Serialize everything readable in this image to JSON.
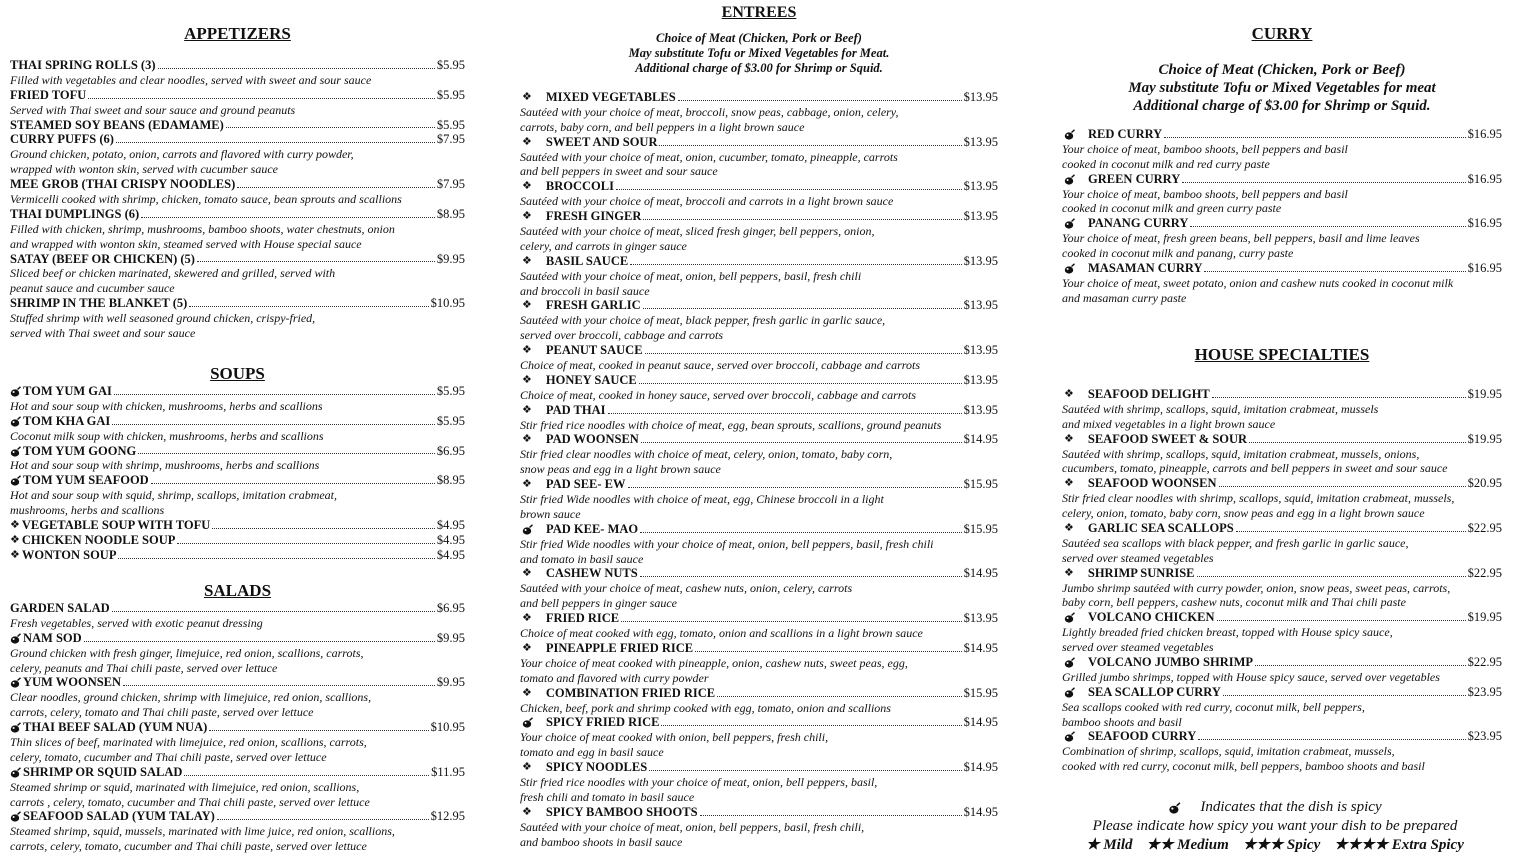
{
  "appetizers": {
    "title": "APPETIZERS",
    "items": [
      {
        "name": "THAI SPRING ROLLS (3)",
        "price": "$5.95",
        "desc": [
          "Filled with vegetables and clear noodles, served with sweet and sour sauce"
        ]
      },
      {
        "name": "FRIED TOFU",
        "price": "$5.95",
        "desc": [
          "Served with Thai sweet and sour sauce and ground peanuts"
        ]
      },
      {
        "name": "STEAMED SOY BEANS (EDAMAME)",
        "price": "$5.95",
        "desc": []
      },
      {
        "name": "CURRY PUFFS (6)",
        "price": "$7.95",
        "desc": [
          "Ground chicken, potato, onion, carrots and flavored with curry powder,",
          "wrapped with wonton skin, served with cucumber sauce"
        ]
      },
      {
        "name": "MEE GROB (THAI CRISPY NOODLES)",
        "price": "$7.95",
        "desc": [
          "Vermicelli cooked with shrimp, chicken, tomato sauce, bean sprouts and scallions"
        ]
      },
      {
        "name": "THAI DUMPLINGS (6)",
        "price": "$8.95",
        "desc": [
          "Filled with chicken, shrimp, mushrooms, bamboo shoots, water chestnuts, onion",
          "and wrapped with wonton skin, steamed served with House special sauce"
        ]
      },
      {
        "name": "SATAY (BEEF OR CHICKEN) (5)",
        "price": "$9.95",
        "desc": [
          "Sliced beef or chicken marinated, skewered and grilled, served with",
          "peanut sauce and cucumber sauce"
        ]
      },
      {
        "name": "SHRIMP IN THE BLANKET (5)",
        "price": "$10.95",
        "desc": [
          "Stuffed shrimp with well seasoned ground chicken, crispy-fried,",
          "served with Thai sweet and sour sauce"
        ]
      }
    ]
  },
  "soups": {
    "title": "SOUPS",
    "items": [
      {
        "spicy": true,
        "name": "TOM  YUM  GAI",
        "price": "$5.95",
        "desc": [
          "Hot and sour soup with chicken, mushrooms, herbs and scallions"
        ]
      },
      {
        "spicy": true,
        "name": "TOM  KHA GAI",
        "price": "$5.95",
        "desc": [
          " Coconut  milk soup with chicken, mushrooms, herbs and scallions"
        ]
      },
      {
        "spicy": true,
        "name": "TOM  YUM  GOONG",
        "price": "$6.95",
        "desc": [
          "Hot and sour soup with shrimp, mushrooms, herbs and scallions"
        ]
      },
      {
        "spicy": true,
        "name": "TOM  YUM SEAFOOD",
        "price": "$8.95",
        "desc": [
          "Hot and sour soup with squid, shrimp, scallops, imitation crabmeat,",
          " mushrooms, herbs and scallions"
        ]
      },
      {
        "bullet": "❖",
        "name": "VEGETABLE SOUP WITH TOFU",
        "price": "$4.95",
        "desc": []
      },
      {
        "bullet": "❖",
        "name": "CHICKEN NOODLE SOUP",
        "price": "$4.95",
        "desc": []
      },
      {
        "bullet": "❖",
        "name": "WONTON SOUP",
        "price": "$4.95",
        "desc": []
      }
    ]
  },
  "salads": {
    "title": "SALADS",
    "items": [
      {
        "name": "GARDEN SALAD",
        "price": "$6.95",
        "desc": [
          "Fresh vegetables, served with exotic peanut dressing"
        ]
      },
      {
        "spicy": true,
        "name": "NAM SOD",
        "price": "$9.95",
        "desc": [
          "Ground chicken with fresh ginger, limejuice, red onion, scallions, carrots,",
          "celery, peanuts and Thai chili paste, served over lettuce"
        ]
      },
      {
        "spicy": true,
        "name": "YUM WOONSEN",
        "price": "$9.95",
        "desc": [
          "Clear noodles, ground chicken, shrimp with limejuice, red onion, scallions,",
          "carrots, celery, tomato and Thai chili paste, served over lettuce"
        ]
      },
      {
        "spicy": true,
        "name": "THAI BEEF SALAD (YUM  NUA)",
        "price": "$10.95",
        "desc": [
          "Thin slices of beef, marinated with limejuice, red onion, scallions, carrots,",
          "celery, tomato, cucumber and Thai chili paste, served over lettuce"
        ]
      },
      {
        "spicy": true,
        "name": "SHRIMP OR SQUID SALAD",
        "price": "$11.95",
        "desc": [
          "Steamed shrimp or squid, marinated with limejuice, red onion, scallions,",
          "carrots , celery, tomato, cucumber and Thai chili paste, served over lettuce"
        ]
      },
      {
        "spicy": true,
        "name": "SEAFOOD SALAD (YUM TALAY)",
        "price": "$12.95",
        "desc": [
          "Steamed shrimp, squid, mussels, marinated with lime juice, red onion, scallions,",
          "carrots, celery, tomato, cucumber and Thai chili paste, served over lettuce"
        ]
      }
    ]
  },
  "entrees": {
    "title": "ENTREES",
    "subtitle": [
      "Choice of Meat (Chicken, Pork or Beef)",
      "May substitute Tofu or Mixed Vegetables for Meat.",
      "Additional charge of $3.00 for Shrimp or Squid."
    ],
    "items": [
      {
        "bullet": "❖",
        "name": "MIXED VEGETABLES",
        "price": "$13.95",
        "desc": [
          "Sautéed with your choice of meat, broccoli, snow peas, cabbage, onion, celery,",
          "carrots, baby corn, and bell peppers in a light brown sauce"
        ]
      },
      {
        "bullet": "❖",
        "name": "SWEET AND SOUR",
        "price": "$13.95",
        "desc": [
          "Sautéed with your choice of meat, onion, cucumber, tomato, pineapple, carrots",
          "and bell peppers in  sweet and sour sauce"
        ]
      },
      {
        "bullet": "❖",
        "name": "BROCCOLI",
        "price": "$13.95",
        "desc": [
          "Sautéed with your choice of meat, broccoli and carrots in a light brown sauce"
        ]
      },
      {
        "bullet": "❖",
        "name": "FRESH GINGER",
        "price": "$13.95",
        "desc": [
          "Sautéed with your choice of meat, sliced fresh ginger, bell peppers, onion,",
          "celery, and carrots in ginger sauce"
        ]
      },
      {
        "bullet": "❖",
        "name": "BASIL SAUCE",
        "price": "$13.95",
        "desc": [
          "Sautéed with your choice of meat, onion, bell peppers, basil, fresh chili",
          "and broccoli  in basil sauce"
        ]
      },
      {
        "bullet": "❖",
        "name": "FRESH GARLIC",
        "price": "$13.95",
        "desc": [
          "Sautéed with your choice of meat, black pepper, fresh garlic in garlic sauce,",
          "served over broccoli, cabbage and carrots"
        ]
      },
      {
        "bullet": "❖",
        "name": "PEANUT SAUCE",
        "price": "$13.95",
        "desc": [
          "Choice of meat, cooked in peanut sauce, served over broccoli, cabbage and carrots"
        ]
      },
      {
        "bullet": "❖",
        "name": "HONEY SAUCE",
        "price": "$13.95",
        "desc": [
          "Choice of meat, cooked in honey sauce, served over broccoli, cabbage and carrots"
        ]
      },
      {
        "bullet": "❖",
        "name": "PAD THAI",
        "price": "$13.95",
        "desc": [
          "Stir fried rice noodles with choice of meat, egg, bean sprouts, scallions, ground peanuts"
        ]
      },
      {
        "bullet": "❖",
        "name": "PAD WOONSEN",
        "price": "$14.95",
        "desc": [
          "Stir fried clear noodles with choice of meat, celery, onion, tomato, baby corn,",
          " snow peas and egg in a light brown sauce"
        ]
      },
      {
        "bullet": "❖",
        "name": "PAD SEE- EW",
        "price": "$15.95",
        "desc": [
          "Stir fried Wide noodles with choice of meat, egg, Chinese broccoli  in a light",
          "brown sauce"
        ]
      },
      {
        "spicy": true,
        "name": "PAD KEE- MAO",
        "price": "$15.95",
        "desc": [
          "Stir fried Wide noodles with your choice of meat, onion, bell peppers, basil, fresh chili",
          "and tomato in basil sauce"
        ]
      },
      {
        "bullet": "❖",
        "name": "CASHEW NUTS",
        "price": "$14.95",
        "desc": [
          "Sautéed with your choice of meat, cashew nuts, onion, celery, carrots",
          "and bell peppers in ginger sauce"
        ]
      },
      {
        "bullet": "❖",
        "name": "FRIED RICE",
        "price": "$13.95",
        "desc": [
          "Choice of meat cooked with egg, tomato, onion and scallions in a light brown sauce"
        ]
      },
      {
        "bullet": "❖",
        "name": "PINEAPPLE FRIED RICE",
        "price": "$14.95",
        "desc": [
          "Your choice of meat cooked with pineapple, onion, cashew nuts, sweet peas, egg,",
          " tomato and flavored with curry powder"
        ]
      },
      {
        "bullet": "❖",
        "name": "COMBINATION FRIED RICE",
        "price": "$15.95",
        "desc": [
          "Chicken, beef, pork and shrimp cooked with egg, tomato, onion and scallions"
        ]
      },
      {
        "spicy": true,
        "name": "SPICY FRIED RICE",
        "price": "$14.95",
        "desc": [
          "Your choice of meat cooked with onion, bell peppers, fresh chili,",
          " tomato and egg  in basil sauce"
        ]
      },
      {
        "bullet": "❖",
        "name": "SPICY NOODLES",
        "price": "$14.95",
        "desc": [
          "Stir fried rice noodles with your choice of meat, onion, bell peppers, basil,",
          "fresh chili and tomato in basil sauce"
        ]
      },
      {
        "bullet": "❖",
        "name": "SPICY BAMBOO SHOOTS",
        "price": "$14.95",
        "desc": [
          "Sautéed with your choice of meat, onion, bell peppers, basil, fresh chili,",
          " and bamboo shoots  in basil sauce"
        ]
      }
    ]
  },
  "curry": {
    "title": "CURRY",
    "subtitle": [
      "Choice of Meat (Chicken, Pork or Beef)",
      "May substitute Tofu or Mixed Vegetables for meat",
      "Additional charge  of $3.00 for Shrimp or Squid."
    ],
    "items": [
      {
        "spicy": true,
        "name": "RED CURRY",
        "price": "$16.95",
        "desc": [
          "Your choice of meat, bamboo shoots, bell peppers and basil",
          "cooked in coconut milk and red curry paste"
        ]
      },
      {
        "spicy": true,
        "name": "GREEN CURRY",
        "price": "$16.95",
        "desc": [
          "Your choice of meat, bamboo shoots, bell peppers and basil",
          " cooked in coconut milk and green curry paste"
        ]
      },
      {
        "spicy": true,
        "name": "PANANG CURRY",
        "price": "$16.95",
        "desc": [
          "Your choice of meat, fresh green beans, bell peppers, basil and lime leaves",
          "cooked in coconut milk and  panang, curry paste"
        ]
      },
      {
        "spicy": true,
        "name": "MASAMAN CURRY",
        "price": "$16.95",
        "desc": [
          "Your choice of meat, sweet potato, onion and cashew nuts cooked in coconut milk",
          "and  masaman curry paste"
        ]
      }
    ]
  },
  "house_specialties": {
    "title": "HOUSE SPECIALTIES",
    "items": [
      {
        "bullet": "❖",
        "name": "SEAFOOD DELIGHT",
        "price": "$19.95",
        "desc": [
          "Sautéed with shrimp, scallops, squid, imitation crabmeat, mussels",
          "and mixed vegetables in a light brown sauce"
        ]
      },
      {
        "bullet": "❖",
        "name": "SEAFOOD SWEET & SOUR",
        "price": "$19.95",
        "desc": [
          "Sautéed with shrimp, scallops, squid, imitation crabmeat, mussels, onions,",
          "cucumbers, tomato, pineapple, carrots and bell peppers in  sweet and sour sauce"
        ]
      },
      {
        "bullet": "❖",
        "name": "SEAFOOD WOONSEN",
        "price": "$20.95",
        "desc": [
          "Stir fried clear noodles with shrimp, scallops, squid, imitation crabmeat, mussels,",
          "celery, onion, tomato, baby corn, snow peas and egg in a light brown sauce"
        ]
      },
      {
        "bullet": "❖",
        "name": "GARLIC SEA SCALLOPS",
        "price": "$22.95",
        "desc": [
          "Sautéed sea scallops with black pepper, and fresh garlic in garlic sauce,",
          " served over steamed vegetables"
        ]
      },
      {
        "bullet": "❖",
        "name": "SHRIMP SUNRISE",
        "price": "$22.95",
        "desc": [
          "Jumbo shrimp sautéed with curry powder, onion, snow peas, sweet peas, carrots,",
          "baby corn, bell peppers, cashew nuts, coconut milk and Thai chili paste"
        ]
      },
      {
        "spicy": true,
        "name": "VOLCANO CHICKEN",
        "price": "$19.95",
        "desc": [
          "Lightly breaded fried chicken breast, topped with House spicy sauce,",
          "served over steamed vegetables"
        ]
      },
      {
        "spicy": true,
        "name": "VOLCANO JUMBO SHRIMP",
        "price": "$22.95",
        "desc": [
          "Grilled  jumbo shrimps, topped with House spicy sauce, served over vegetables"
        ]
      },
      {
        "spicy": true,
        "name": "SEA SCALLOP CURRY",
        "price": "$23.95",
        "desc": [
          "Sea scallops cooked with red curry, coconut milk, bell peppers,",
          "bamboo shoots and basil"
        ]
      },
      {
        "spicy": true,
        "name": "SEAFOOD CURRY",
        "price": "$23.95",
        "desc": [
          "Combination of shrimp, scallops, squid, imitation crabmeat, mussels,",
          "cooked with red curry, coconut milk, bell peppers, bamboo shoots and basil"
        ]
      }
    ]
  },
  "footer": {
    "spicy_note": "Indicates that the dish is spicy",
    "instruction": "Please indicate how spicy you want your dish to be prepared",
    "levels": [
      "★ Mild",
      "★★ Medium",
      "★★★ Spicy",
      "★★★★ Extra Spicy"
    ]
  }
}
